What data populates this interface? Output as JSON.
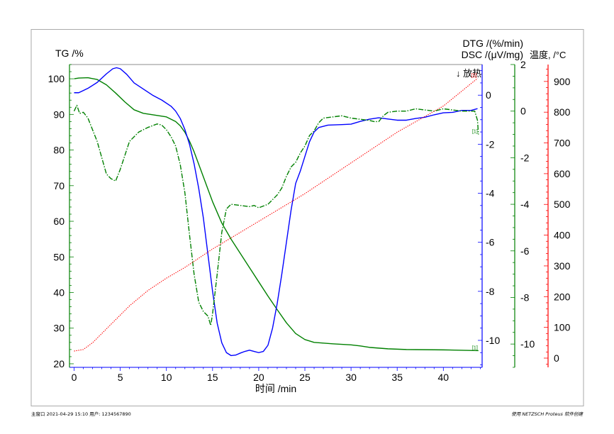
{
  "chart_data": {
    "type": "line",
    "xlabel": "时间 /min",
    "xlim": [
      -0.5,
      44.2
    ],
    "x_ticks": [
      0,
      5,
      10,
      15,
      20,
      25,
      30,
      35,
      40
    ],
    "axes": {
      "tg": {
        "label": "TG /%",
        "range": [
          19,
          104
        ],
        "ticks": [
          20,
          30,
          40,
          50,
          60,
          70,
          80,
          90,
          100
        ],
        "color": "#008000"
      },
      "dsc": {
        "label": "DSC /(μV/mg)",
        "range": [
          -11.1,
          1.25
        ],
        "ticks": [
          -10,
          -8,
          -6,
          -4,
          -2,
          0
        ],
        "color": "#0000ff",
        "annotation": "↓ 放热"
      },
      "dtg": {
        "label": "DTG /(%/min)",
        "range": [
          -11,
          2.0
        ],
        "ticks": [
          -10,
          -8,
          -6,
          -4,
          -2,
          0,
          2
        ],
        "color": "#008000"
      },
      "temp": {
        "label": "温度, /°C",
        "range": [
          -30,
          955
        ],
        "ticks": [
          0,
          100,
          200,
          300,
          400,
          500,
          600,
          700,
          800,
          900
        ],
        "color": "#ff0000"
      }
    },
    "series": [
      {
        "name": "TG",
        "axis": "tg",
        "color": "#008000",
        "style": "solid",
        "end_label": "[1]",
        "points": [
          [
            0,
            100
          ],
          [
            0.5,
            100.2
          ],
          [
            1.5,
            100.3
          ],
          [
            2.5,
            99.8
          ],
          [
            3.5,
            98.3
          ],
          [
            4.5,
            96
          ],
          [
            5.5,
            93.5
          ],
          [
            6.5,
            91.3
          ],
          [
            7.5,
            90.3
          ],
          [
            9,
            89.7
          ],
          [
            10,
            89.3
          ],
          [
            11,
            88
          ],
          [
            11.5,
            86.8
          ],
          [
            12,
            85
          ],
          [
            12.5,
            82.5
          ],
          [
            13,
            79.5
          ],
          [
            13.5,
            76
          ],
          [
            14,
            72.5
          ],
          [
            14.5,
            69
          ],
          [
            15,
            65.5
          ],
          [
            16,
            59.5
          ],
          [
            17,
            55
          ],
          [
            18,
            51
          ],
          [
            19,
            47
          ],
          [
            20,
            43
          ],
          [
            21,
            39
          ],
          [
            22,
            35.2
          ],
          [
            23,
            31.5
          ],
          [
            24,
            28.5
          ],
          [
            25,
            26.8
          ],
          [
            26,
            26
          ],
          [
            28,
            25.6
          ],
          [
            30,
            25.3
          ],
          [
            31,
            25
          ],
          [
            32,
            24.6
          ],
          [
            34,
            24.2
          ],
          [
            36,
            24
          ],
          [
            40,
            23.9
          ],
          [
            43.8,
            23.7
          ]
        ]
      },
      {
        "name": "DSC",
        "axis": "dsc",
        "color": "#0000ff",
        "style": "solid",
        "points": [
          [
            0,
            0.1
          ],
          [
            0.5,
            0.1
          ],
          [
            1.5,
            0.28
          ],
          [
            2.5,
            0.52
          ],
          [
            3.5,
            0.87
          ],
          [
            4.2,
            1.08
          ],
          [
            4.6,
            1.12
          ],
          [
            5,
            1.08
          ],
          [
            5.7,
            0.85
          ],
          [
            6.5,
            0.5
          ],
          [
            7.5,
            0.25
          ],
          [
            8.5,
            0
          ],
          [
            9.5,
            -0.2
          ],
          [
            10.5,
            -0.45
          ],
          [
            11,
            -0.65
          ],
          [
            11.5,
            -0.95
          ],
          [
            12,
            -1.4
          ],
          [
            12.5,
            -2
          ],
          [
            13,
            -2.8
          ],
          [
            13.5,
            -3.8
          ],
          [
            14,
            -5
          ],
          [
            14.5,
            -6.5
          ],
          [
            15,
            -8
          ],
          [
            15.5,
            -9.3
          ],
          [
            16,
            -10.1
          ],
          [
            16.5,
            -10.5
          ],
          [
            17,
            -10.62
          ],
          [
            17.5,
            -10.6
          ],
          [
            18,
            -10.52
          ],
          [
            18.5,
            -10.45
          ],
          [
            19,
            -10.4
          ],
          [
            19.5,
            -10.45
          ],
          [
            20,
            -10.5
          ],
          [
            20.5,
            -10.45
          ],
          [
            21,
            -10.2
          ],
          [
            21.5,
            -9.5
          ],
          [
            22,
            -8.5
          ],
          [
            22.5,
            -7.3
          ],
          [
            23,
            -6
          ],
          [
            23.5,
            -4.7
          ],
          [
            24,
            -3.6
          ],
          [
            24.5,
            -3.1
          ],
          [
            25,
            -2.5
          ],
          [
            25.5,
            -1.9
          ],
          [
            26,
            -1.5
          ],
          [
            26.5,
            -1.32
          ],
          [
            27.5,
            -1.22
          ],
          [
            29,
            -1.2
          ],
          [
            30,
            -1.18
          ],
          [
            31,
            -1.07
          ],
          [
            32,
            -0.98
          ],
          [
            33,
            -0.92
          ],
          [
            34,
            -0.97
          ],
          [
            35,
            -1.02
          ],
          [
            36,
            -1.02
          ],
          [
            37,
            -0.95
          ],
          [
            38,
            -0.9
          ],
          [
            39,
            -0.8
          ],
          [
            40,
            -0.72
          ],
          [
            41,
            -0.7
          ],
          [
            42,
            -0.62
          ],
          [
            43,
            -0.62
          ],
          [
            43.7,
            -0.55
          ]
        ]
      },
      {
        "name": "DTG",
        "axis": "dtg",
        "color": "#008000",
        "style": "dashdot",
        "end_label": "[1]",
        "points": [
          [
            0,
            0
          ],
          [
            0.3,
            0.25
          ],
          [
            0.6,
            -0.1
          ],
          [
            1,
            -0.05
          ],
          [
            1.5,
            -0.3
          ],
          [
            2,
            -0.8
          ],
          [
            2.5,
            -1.3
          ],
          [
            3,
            -2
          ],
          [
            3.5,
            -2.7
          ],
          [
            4,
            -2.9
          ],
          [
            4.5,
            -3
          ],
          [
            5,
            -2.5
          ],
          [
            5.5,
            -1.9
          ],
          [
            6,
            -1.3
          ],
          [
            7,
            -0.9
          ],
          [
            8,
            -0.7
          ],
          [
            9,
            -0.55
          ],
          [
            9.5,
            -0.6
          ],
          [
            10,
            -0.8
          ],
          [
            10.5,
            -1.1
          ],
          [
            11,
            -1.5
          ],
          [
            11.5,
            -2.3
          ],
          [
            12,
            -3.5
          ],
          [
            12.5,
            -5.3
          ],
          [
            13,
            -7
          ],
          [
            13.5,
            -8.2
          ],
          [
            14,
            -8.6
          ],
          [
            14.5,
            -8.8
          ],
          [
            14.8,
            -9.2
          ],
          [
            15,
            -8.7
          ],
          [
            15.5,
            -7
          ],
          [
            16,
            -5.2
          ],
          [
            16.5,
            -4.2
          ],
          [
            17,
            -4
          ],
          [
            18,
            -4.05
          ],
          [
            19,
            -4.1
          ],
          [
            19.5,
            -4.05
          ],
          [
            20,
            -4.15
          ],
          [
            21,
            -4
          ],
          [
            22,
            -3.6
          ],
          [
            22.5,
            -3.3
          ],
          [
            23,
            -2.8
          ],
          [
            23.5,
            -2.4
          ],
          [
            24,
            -2.2
          ],
          [
            24.5,
            -1.8
          ],
          [
            25,
            -1.5
          ],
          [
            25.5,
            -1.05
          ],
          [
            26,
            -0.85
          ],
          [
            26.5,
            -0.5
          ],
          [
            27,
            -0.3
          ],
          [
            28,
            -0.25
          ],
          [
            29,
            -0.2
          ],
          [
            30,
            -0.3
          ],
          [
            31,
            -0.35
          ],
          [
            32,
            -0.4
          ],
          [
            32.5,
            -0.45
          ],
          [
            33,
            -0.45
          ],
          [
            33.5,
            -0.2
          ],
          [
            34,
            -0.05
          ],
          [
            35,
            0
          ],
          [
            36,
            0
          ],
          [
            37,
            0.1
          ],
          [
            38,
            0.05
          ],
          [
            39,
            0
          ],
          [
            40,
            0.1
          ],
          [
            41,
            0.05
          ],
          [
            42,
            0
          ],
          [
            43,
            0
          ],
          [
            43.4,
            0
          ],
          [
            43.7,
            -0.4
          ],
          [
            43.8,
            -1
          ]
        ]
      },
      {
        "name": "Temperature",
        "axis": "temp",
        "color": "#ff0000",
        "style": "dotted",
        "end_label": "[1]",
        "points": [
          [
            0,
            23
          ],
          [
            1,
            28
          ],
          [
            2,
            50
          ],
          [
            3,
            80
          ],
          [
            4,
            110
          ],
          [
            5,
            140
          ],
          [
            6,
            170
          ],
          [
            8,
            220
          ],
          [
            10,
            260
          ],
          [
            12,
            295
          ],
          [
            15,
            355
          ],
          [
            20,
            445
          ],
          [
            25,
            535
          ],
          [
            30,
            635
          ],
          [
            35,
            735
          ],
          [
            40,
            820
          ],
          [
            43.7,
            910
          ]
        ]
      }
    ]
  },
  "footer": {
    "left": "主窗口   2021-04-29 15:10   用户: 1234567890",
    "right": "使用 NETZSCH Proteus 软件创建"
  }
}
